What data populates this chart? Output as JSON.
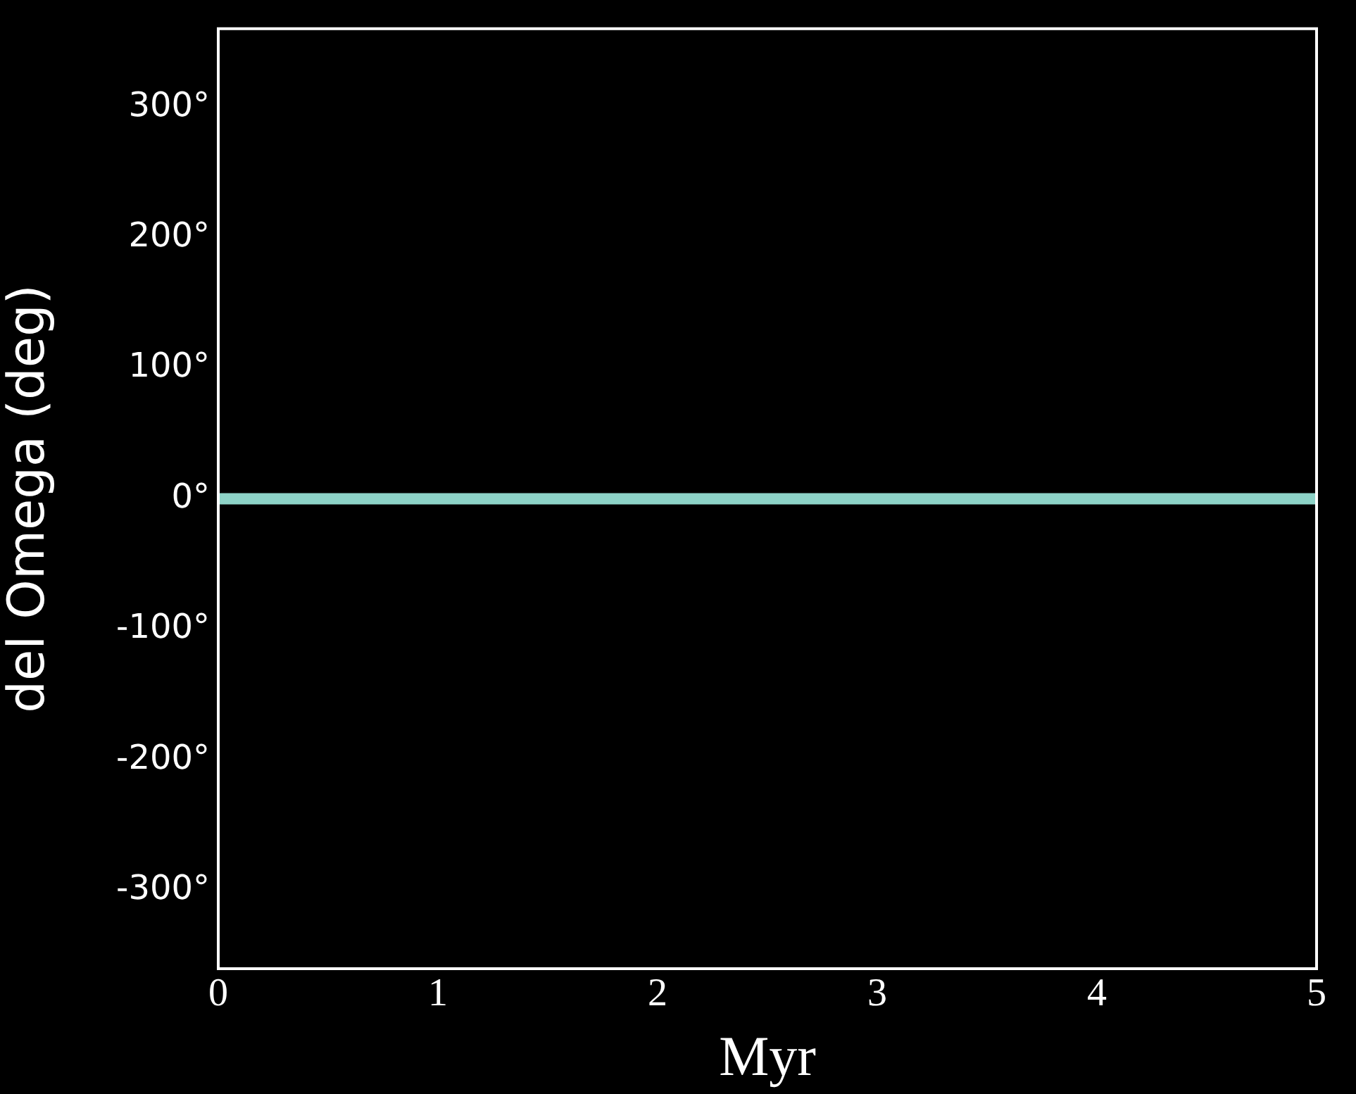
{
  "chart_data": {
    "type": "line",
    "xlabel": "Myr",
    "ylabel": "del Omega (deg)",
    "x": [
      0,
      5
    ],
    "series": [
      {
        "color": "#8dd3c7",
        "values": [
          0,
          0
        ]
      }
    ],
    "xlim": [
      0,
      5
    ],
    "xticks": [
      0,
      1,
      2,
      3,
      4,
      5
    ],
    "ylim": [
      -360,
      360
    ],
    "yticks": [
      {
        "value": -300,
        "label": "-300°"
      },
      {
        "value": -200,
        "label": "-200°"
      },
      {
        "value": -100,
        "label": "-100°"
      },
      {
        "value": 0,
        "label": "0°"
      },
      {
        "value": 100,
        "label": "100°"
      },
      {
        "value": 200,
        "label": "200°"
      },
      {
        "value": 300,
        "label": "300°"
      }
    ],
    "grid": false,
    "legend": false,
    "marker": "none",
    "line_style": "solid"
  }
}
